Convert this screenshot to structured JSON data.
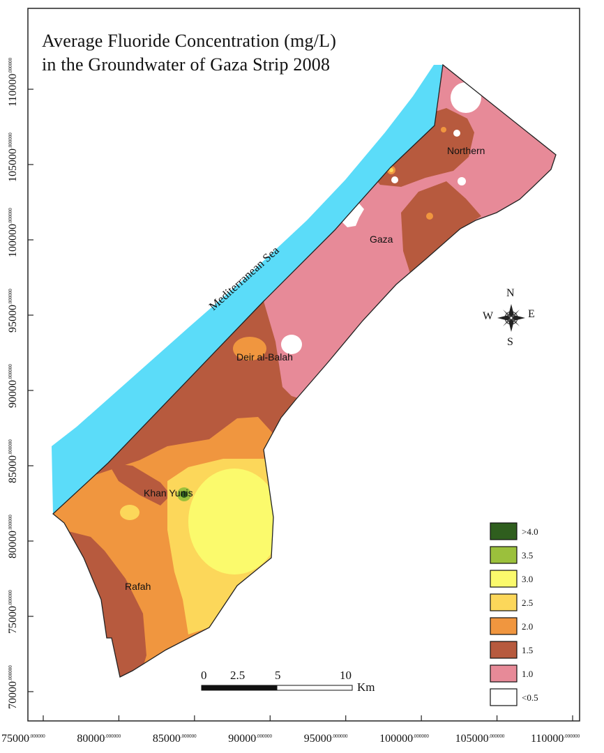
{
  "title": {
    "line1": "Average Fluoride Concentration (mg/L)",
    "line2": "in the Groundwater of Gaza Strip 2008"
  },
  "sea_label": "Mediterranean Sea",
  "places": {
    "northern": "Northern",
    "gaza": "Gaza",
    "deir_al_balah": "Deir al-Balah",
    "khan_yunis": "Khan Yunis",
    "rafah": "Rafah"
  },
  "compass": {
    "n": "N",
    "s": "S",
    "e": "E",
    "w": "W"
  },
  "y_ticks": [
    {
      "main": "110000",
      "sup": ".000000",
      "value": 110000
    },
    {
      "main": "105000",
      "sup": ".000000",
      "value": 105000
    },
    {
      "main": "100000",
      "sup": ".000000",
      "value": 100000
    },
    {
      "main": "95000",
      "sup": ".000000",
      "value": 95000
    },
    {
      "main": "90000",
      "sup": ".000000",
      "value": 90000
    },
    {
      "main": "85000",
      "sup": ".000000",
      "value": 85000
    },
    {
      "main": "80000",
      "sup": ".000000",
      "value": 80000
    },
    {
      "main": "75000",
      "sup": ".000000",
      "value": 75000
    },
    {
      "main": "70000",
      "sup": ".000000",
      "value": 70000
    }
  ],
  "x_ticks": [
    {
      "main": "75000",
      "sup": ".000000",
      "value": 75000
    },
    {
      "main": "80000",
      "sup": ".000000",
      "value": 80000
    },
    {
      "main": "85000",
      "sup": ".000000",
      "value": 85000
    },
    {
      "main": "90000",
      "sup": ".000000",
      "value": 90000
    },
    {
      "main": "95000",
      "sup": ".000000",
      "value": 95000
    },
    {
      "main": "100000",
      "sup": ".000000",
      "value": 100000
    },
    {
      "main": "105000",
      "sup": ".000000",
      "value": 105000
    },
    {
      "main": "110000",
      "sup": ".000000",
      "value": 110000
    }
  ],
  "legend": [
    {
      "label": ">4.0",
      "color": "#2f5e1e"
    },
    {
      "label": "3.5",
      "color": "#9bc03c"
    },
    {
      "label": "3.0",
      "color": "#fbfa6c"
    },
    {
      "label": "2.5",
      "color": "#fcd75a"
    },
    {
      "label": "2.0",
      "color": "#f0963f"
    },
    {
      "label": "1.5",
      "color": "#b75a3e"
    },
    {
      "label": "1.0",
      "color": "#e78a98"
    },
    {
      "label": "<0.5",
      "color": "#ffffff"
    }
  ],
  "scale_bar": {
    "labels": [
      "0",
      "2.5",
      "5",
      "10"
    ],
    "unit": "Km"
  },
  "colors": {
    "sea": "#5bdcf9",
    "frame": "#222222"
  }
}
